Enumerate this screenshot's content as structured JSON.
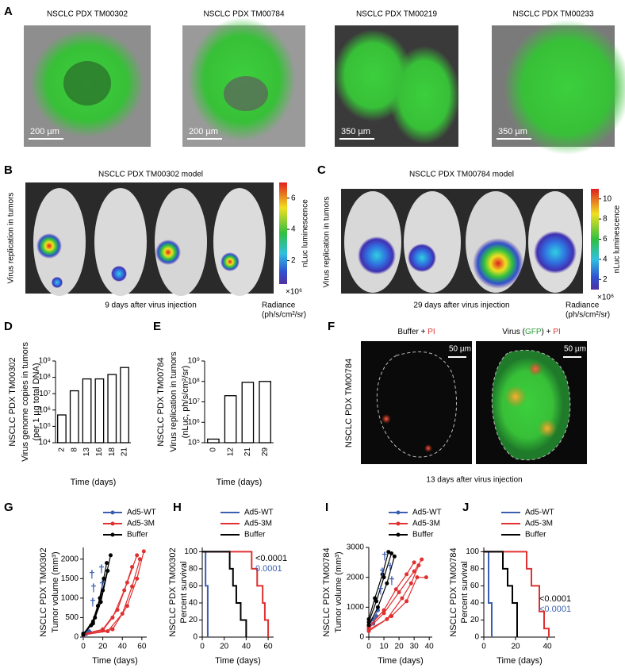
{
  "panel_labels": [
    "A",
    "B",
    "C",
    "D",
    "E",
    "F",
    "G",
    "H",
    "I",
    "J"
  ],
  "panel_a": {
    "titles": [
      "NSCLC PDX TM00302",
      "NSCLC PDX TM00784",
      "NSCLC PDX TM00219",
      "NSCLC PDX TM00233"
    ],
    "scale_bars": [
      "200 µm",
      "200 µm",
      "350 µm",
      "350 µm"
    ]
  },
  "panel_b": {
    "title": "NSCLC PDX TM00302 model",
    "ylabel": "Virus replication in tumors",
    "caption": "9 days after virus injection",
    "colorbar_label": "nLuc luminescence",
    "colorbar_lim": [
      0.5,
      7
    ],
    "colorbar_ticks": [
      6,
      4,
      2
    ],
    "colorbar_exponent": "×10⁶",
    "radiance_label": "Radiance",
    "radiance_unit": "(ph/s/cm²/sr)"
  },
  "panel_c": {
    "title": "NSCLC PDX TM00784 model",
    "ylabel": "Virus replication in tumors",
    "caption": "29 days after virus injection",
    "colorbar_label": "nLuc luminescence",
    "colorbar_lim": [
      1,
      11
    ],
    "colorbar_ticks": [
      10,
      8,
      6,
      4,
      2
    ],
    "colorbar_exponent": "×10⁶",
    "radiance_label": "Radiance",
    "radiance_unit": "(ph/s/cm²/sr)"
  },
  "panel_f": {
    "ylabel": "NSCLC PDX TM00784",
    "caption": "13 days after virus injection",
    "scale_bars": [
      "50 µm",
      "50 µm"
    ],
    "labels": [
      [
        {
          "text": "Buffer + ",
          "color": "#000000"
        },
        {
          "text": "PI",
          "color": "#e03030"
        }
      ],
      [
        {
          "text": "Virus (",
          "color": "#000000"
        },
        {
          "text": "GFP",
          "color": "#2a9d3a"
        },
        {
          "text": ") + ",
          "color": "#000000"
        },
        {
          "text": "PI",
          "color": "#e03030"
        }
      ]
    ]
  },
  "chart_data": [
    {
      "type": "bar",
      "log_scale": true,
      "ylabel": [
        "NSCLC PDX TM00302",
        "Virus genome copies in tumors",
        "(per 1 µg total DNA)"
      ],
      "xlabel": "Time (days)",
      "categories": [
        "2",
        "8",
        "13",
        "16",
        "18",
        "21"
      ],
      "values": [
        500000,
        15000000,
        80000000,
        80000000,
        150000000,
        400000000
      ],
      "bar_color": "#ffffff",
      "edge_color": "#000000",
      "ylim": [
        10000,
        1000000000
      ],
      "yticks": [
        {
          "value": 10000,
          "label": "10⁴"
        },
        {
          "value": 100000,
          "label": "10⁵"
        },
        {
          "value": 1000000,
          "label": "10⁶"
        },
        {
          "value": 10000000,
          "label": "10⁷"
        },
        {
          "value": 100000000,
          "label": "10⁸"
        },
        {
          "value": 1000000000,
          "label": "10⁹"
        }
      ]
    },
    {
      "type": "bar",
      "log_scale": true,
      "ylabel": [
        "NSCLC PDX TM00784",
        "Virus replication in tumors",
        "(nLuc, ph/s/cm²/sr)"
      ],
      "xlabel": "Time (days)",
      "categories": [
        "0",
        "12",
        "21",
        "29"
      ],
      "values": [
        150000,
        20000000,
        90000000,
        100000000
      ],
      "bar_color": "#ffffff",
      "edge_color": "#000000",
      "ylim": [
        100000,
        1000000000
      ],
      "yticks": [
        {
          "value": 100000,
          "label": "10⁵"
        },
        {
          "value": 1000000,
          "label": "10⁶"
        },
        {
          "value": 10000000,
          "label": "10⁷"
        },
        {
          "value": 100000000,
          "label": "10⁸"
        },
        {
          "value": 1000000000,
          "label": "10⁹"
        }
      ]
    },
    {
      "type": "line",
      "ylabel": [
        "NSCLC PDX TM00302",
        "Tumor volume (mm³)"
      ],
      "xlabel": "Time (days)",
      "xlim": [
        0,
        65
      ],
      "xticks": [
        0,
        20,
        40,
        60
      ],
      "ylim": [
        0,
        2300
      ],
      "yticks": [
        0,
        500,
        1000,
        1500,
        2000
      ],
      "annotations": [
        "†",
        "†",
        "†",
        "†",
        "†"
      ],
      "annotation_color": "#3a5fb0",
      "series": [
        {
          "name": "Ad5-WT",
          "color": "#3a5fb0",
          "lines": [
            {
              "x": [
                0,
                3,
                6
              ],
              "values": [
                50,
                100,
                150
              ]
            },
            {
              "x": [
                0,
                3,
                7
              ],
              "values": [
                40,
                80,
                120
              ]
            }
          ]
        },
        {
          "name": "Ad5-3M",
          "color": "#e03030",
          "lines": [
            {
              "x": [
                0,
                20,
                35,
                45,
                55
              ],
              "values": [
                80,
                200,
                700,
                1400,
                2100
              ]
            },
            {
              "x": [
                0,
                25,
                40,
                50,
                58
              ],
              "values": [
                60,
                150,
                600,
                1300,
                2000
              ]
            },
            {
              "x": [
                0,
                20,
                30,
                42,
                50
              ],
              "values": [
                70,
                180,
                500,
                1200,
                1800
              ]
            },
            {
              "x": [
                0,
                30,
                45,
                55,
                62
              ],
              "values": [
                50,
                200,
                800,
                1500,
                2200
              ]
            }
          ]
        },
        {
          "name": "Buffer",
          "color": "#000000",
          "lines": [
            {
              "x": [
                0,
                10,
                17,
                24
              ],
              "values": [
                80,
                400,
                1000,
                1900
              ]
            },
            {
              "x": [
                0,
                8,
                15,
                21
              ],
              "values": [
                60,
                300,
                800,
                1500
              ]
            },
            {
              "x": [
                0,
                12,
                20,
                28
              ],
              "values": [
                70,
                500,
                1200,
                2100
              ]
            },
            {
              "x": [
                0,
                10,
                18,
                25
              ],
              "values": [
                90,
                350,
                900,
                1700
              ]
            }
          ]
        }
      ]
    },
    {
      "type": "step",
      "ylabel": [
        "NSCLC PDX TM00302",
        "Percent survival"
      ],
      "xlabel": "Time (days)",
      "xlim": [
        0,
        65
      ],
      "xticks": [
        0,
        20,
        40,
        60
      ],
      "ylim": [
        0,
        105
      ],
      "yticks": [
        0,
        20,
        40,
        60,
        80,
        100
      ],
      "pvalues": [
        {
          "text": "<0.0001",
          "color": "#000000"
        },
        {
          "text": "0.0001",
          "color": "#3a5fb0"
        }
      ],
      "series": [
        {
          "name": "Ad5-WT",
          "color": "#3a5fb0",
          "x": [
            0,
            3,
            5
          ],
          "values": [
            100,
            60,
            0
          ]
        },
        {
          "name": "Ad5-3M",
          "color": "#e03030",
          "x": [
            0,
            45,
            50,
            55,
            57,
            60
          ],
          "values": [
            100,
            80,
            60,
            40,
            20,
            0
          ]
        },
        {
          "name": "Buffer",
          "color": "#000000",
          "x": [
            0,
            25,
            28,
            31,
            35,
            40
          ],
          "values": [
            100,
            80,
            60,
            40,
            20,
            0
          ]
        }
      ]
    },
    {
      "type": "line",
      "ylabel": [
        "NSCLC PDX TM00784",
        "Tumor volume (mm³)"
      ],
      "xlabel": "Time (days)",
      "xlim": [
        0,
        42
      ],
      "xticks": [
        0,
        10,
        20,
        30,
        40
      ],
      "ylim": [
        0,
        3000
      ],
      "yticks": [
        0,
        1000,
        2000,
        3000
      ],
      "annotations": [
        "†",
        "†",
        "†",
        "†",
        "†"
      ],
      "annotation_color": "#3a5fb0",
      "series": [
        {
          "name": "Ad5-WT",
          "color": "#3a5fb0",
          "lines": [
            {
              "x": [
                0,
                3,
                6
              ],
              "values": [
                400,
                600,
                900
              ]
            },
            {
              "x": [
                0,
                3,
                5
              ],
              "values": [
                300,
                450,
                700
              ]
            }
          ]
        },
        {
          "name": "Ad5-3M",
          "color": "#e03030",
          "lines": [
            {
              "x": [
                0,
                10,
                20,
                30,
                35
              ],
              "values": [
                300,
                800,
                1500,
                2200,
                2600
              ]
            },
            {
              "x": [
                0,
                12,
                22,
                28,
                33
              ],
              "values": [
                250,
                600,
                1300,
                1800,
                2400
              ]
            },
            {
              "x": [
                0,
                15,
                25,
                32,
                38
              ],
              "values": [
                200,
                700,
                1200,
                2000,
                2000
              ]
            },
            {
              "x": [
                0,
                10,
                18,
                25,
                30
              ],
              "values": [
                350,
                900,
                1600,
                2100,
                2500
              ]
            }
          ]
        },
        {
          "name": "Buffer",
          "color": "#000000",
          "lines": [
            {
              "x": [
                0,
                5,
                10,
                15
              ],
              "values": [
                500,
                1200,
                2000,
                2800
              ]
            },
            {
              "x": [
                0,
                6,
                12,
                17
              ],
              "values": [
                400,
                1000,
                1800,
                2700
              ]
            },
            {
              "x": [
                0,
                4,
                9,
                13
              ],
              "values": [
                600,
                1300,
                2100,
                2850
              ]
            }
          ]
        }
      ]
    },
    {
      "type": "step",
      "ylabel": [
        "NSCLC PDX TM00784",
        "Percent survival"
      ],
      "xlabel": "Time (days)",
      "xlim": [
        0,
        45
      ],
      "xticks": [
        0,
        20,
        40
      ],
      "ylim": [
        0,
        105
      ],
      "yticks": [
        0,
        20,
        40,
        60,
        80,
        100
      ],
      "pvalues": [
        {
          "text": "<0.0001",
          "color": "#000000"
        },
        {
          "text": "<0.0001",
          "color": "#3a5fb0"
        }
      ],
      "series": [
        {
          "name": "Ad5-WT",
          "color": "#3a5fb0",
          "x": [
            0,
            3,
            5
          ],
          "values": [
            100,
            40,
            0
          ]
        },
        {
          "name": "Ad5-3M",
          "color": "#e03030",
          "x": [
            0,
            27,
            30,
            35,
            38,
            41
          ],
          "values": [
            100,
            80,
            60,
            30,
            10,
            0
          ]
        },
        {
          "name": "Buffer",
          "color": "#000000",
          "x": [
            0,
            12,
            15,
            18,
            21
          ],
          "values": [
            100,
            80,
            60,
            40,
            0
          ]
        }
      ]
    }
  ]
}
